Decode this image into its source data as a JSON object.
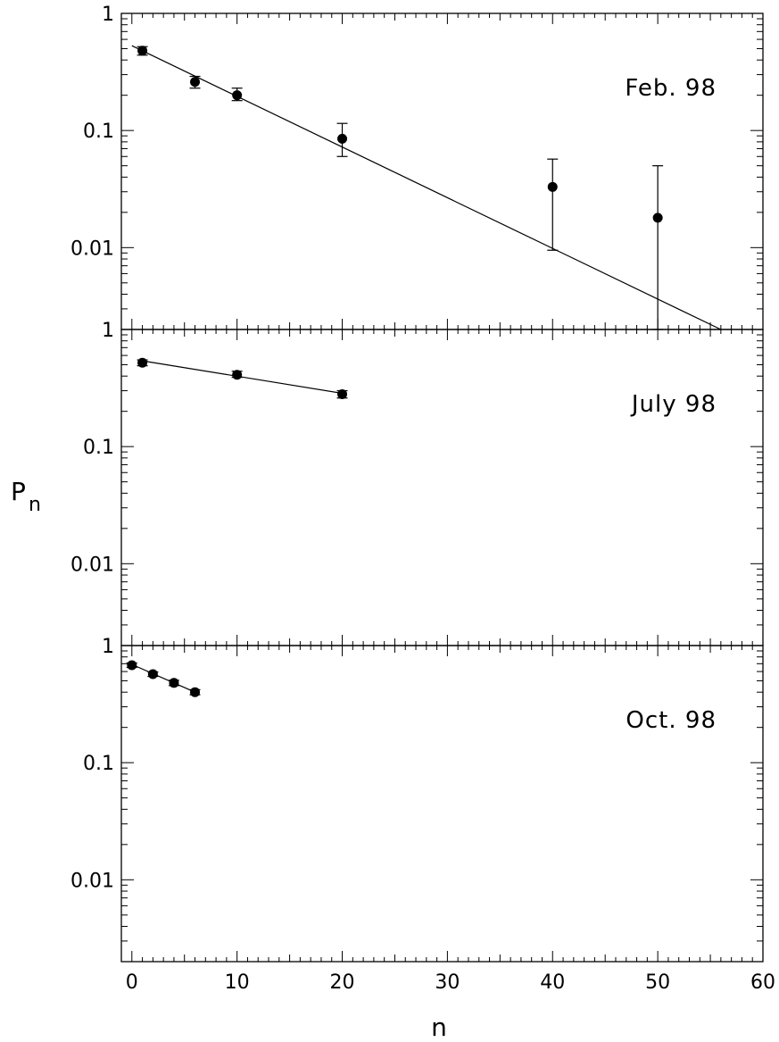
{
  "chart_data": {
    "type": "scatter",
    "xlabel": "n",
    "ylabel": "P",
    "ylabel_sub": "n",
    "xlim": [
      -1,
      60
    ],
    "x_ticks": [
      0,
      10,
      20,
      30,
      40,
      50,
      60
    ],
    "x_tick_labels": [
      "0",
      "10",
      "20",
      "30",
      "40",
      "50",
      "60"
    ],
    "yscale": "log",
    "ylim": [
      0.002,
      1
    ],
    "y_ticks": [
      1,
      0.1,
      0.01
    ],
    "y_tick_labels": [
      "1",
      "0.1",
      "0.01"
    ],
    "grid": false,
    "legend": "none",
    "panels": [
      {
        "label": "Feb. 98",
        "points": [
          {
            "x": 1,
            "y": 0.48,
            "err_low": 0.44,
            "err_high": 0.52
          },
          {
            "x": 6,
            "y": 0.26,
            "err_low": 0.23,
            "err_high": 0.29
          },
          {
            "x": 10,
            "y": 0.2,
            "err_low": 0.18,
            "err_high": 0.23
          },
          {
            "x": 20,
            "y": 0.085,
            "err_low": 0.06,
            "err_high": 0.115
          },
          {
            "x": 40,
            "y": 0.033,
            "err_low": 0.0095,
            "err_high": 0.057
          },
          {
            "x": 50,
            "y": 0.018,
            "err_low": 0.002,
            "err_high": 0.05
          }
        ],
        "fit": {
          "x": [
            0,
            56
          ],
          "y": [
            0.53,
            0.002
          ]
        }
      },
      {
        "label": "July 98",
        "points": [
          {
            "x": 1,
            "y": 0.52,
            "err_low": 0.49,
            "err_high": 0.55
          },
          {
            "x": 10,
            "y": 0.41,
            "err_low": 0.39,
            "err_high": 0.44
          },
          {
            "x": 20,
            "y": 0.28,
            "err_low": 0.26,
            "err_high": 0.3
          }
        ],
        "fit": {
          "x": [
            1,
            20
          ],
          "y": [
            0.54,
            0.285
          ]
        }
      },
      {
        "label": "Oct. 98",
        "points": [
          {
            "x": 0,
            "y": 0.68,
            "err_low": 0.65,
            "err_high": 0.71
          },
          {
            "x": 2,
            "y": 0.57,
            "err_low": 0.545,
            "err_high": 0.595
          },
          {
            "x": 4,
            "y": 0.48,
            "err_low": 0.455,
            "err_high": 0.505
          },
          {
            "x": 6,
            "y": 0.4,
            "err_low": 0.38,
            "err_high": 0.42
          }
        ],
        "fit": {
          "x": [
            0,
            6
          ],
          "y": [
            0.69,
            0.4
          ]
        }
      }
    ]
  }
}
